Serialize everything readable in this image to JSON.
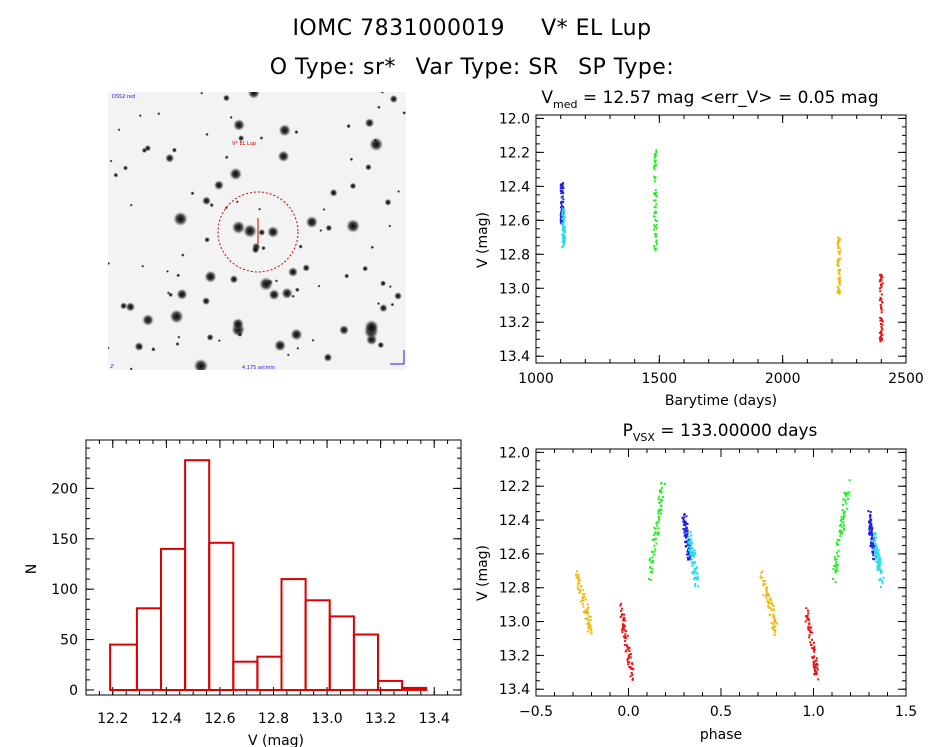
{
  "header": {
    "star_id": "IOMC 7831000019",
    "star_name": "V* EL Lup",
    "otype": "O Type: sr*",
    "vartype": "Var Type: SR",
    "sptype": "SP Type:"
  },
  "image_panel": {
    "label_top_left": "DSS2 red",
    "label_target": "V* EL Lup",
    "label_bottom_left": "2'",
    "label_bottom_center": "4.175 arcmin",
    "colors": {
      "circle": "#cc0000",
      "label": "#1a1aff"
    }
  },
  "chart_data": [
    {
      "id": "lightcurve",
      "type": "scatter",
      "title_main": "V",
      "title_sub": "med",
      "title_rest": " = 12.57 mag <err_V> = 0.05 mag",
      "xlabel": "Barytime (days)",
      "ylabel": "V (mag)",
      "xlim": [
        1000,
        2500
      ],
      "ylim": [
        13.44,
        11.98
      ],
      "y_inverted": true,
      "xticks": [
        1000,
        1500,
        2000,
        2500
      ],
      "xtick_labels": [
        "1000",
        "1500",
        "2000",
        "2500"
      ],
      "yticks": [
        12.0,
        12.2,
        12.4,
        12.6,
        12.8,
        13.0,
        13.2,
        13.4
      ],
      "ytick_labels": [
        "12.0",
        "12.2",
        "12.4",
        "12.6",
        "12.8",
        "13.0",
        "13.2",
        "13.4"
      ],
      "series": [
        {
          "name": "blue",
          "color": "#2020e0",
          "x_range": [
            1100,
            1112
          ],
          "y_range": [
            12.38,
            12.62
          ]
        },
        {
          "name": "cyan",
          "color": "#22ddee",
          "x_range": [
            1106,
            1118
          ],
          "y_range": [
            12.52,
            12.76
          ]
        },
        {
          "name": "green",
          "color": "#22ee22",
          "x_range": [
            1478,
            1490
          ],
          "y_range": [
            12.18,
            12.78
          ]
        },
        {
          "name": "yellow",
          "color": "#eebb11",
          "x_range": [
            2222,
            2234
          ],
          "y_range": [
            12.7,
            13.05
          ]
        },
        {
          "name": "red",
          "color": "#ee1111",
          "x_range": [
            2394,
            2406
          ],
          "y_range": [
            12.92,
            13.32
          ]
        }
      ]
    },
    {
      "id": "histogram",
      "type": "bar",
      "xlabel": "V (mag)",
      "ylabel": "N",
      "xlim": [
        12.1,
        13.5
      ],
      "ylim": [
        -5,
        248
      ],
      "xticks": [
        12.2,
        12.4,
        12.6,
        12.8,
        13.0,
        13.2,
        13.4
      ],
      "xtick_labels": [
        "12.2",
        "12.4",
        "12.6",
        "12.8",
        "13.0",
        "13.2",
        "13.4"
      ],
      "yticks": [
        0,
        50,
        100,
        150,
        200
      ],
      "ytick_labels": [
        "0",
        "50",
        "100",
        "150",
        "200"
      ],
      "bin_edges": [
        12.19,
        12.29,
        12.38,
        12.47,
        12.56,
        12.65,
        12.74,
        12.83,
        12.92,
        13.01,
        13.1,
        13.19,
        13.28,
        13.37
      ],
      "values": [
        45,
        81,
        140,
        228,
        146,
        28,
        33,
        110,
        89,
        73,
        55,
        9,
        2
      ],
      "color": "#dd0000"
    },
    {
      "id": "phased",
      "type": "scatter",
      "title_main": "P",
      "title_sub": "VSX",
      "title_rest": " = 133.00000 days",
      "xlabel": "phase",
      "ylabel": "V (mag)",
      "xlim": [
        -0.5,
        1.5
      ],
      "ylim": [
        13.44,
        11.98
      ],
      "y_inverted": true,
      "xticks": [
        -0.5,
        0.0,
        0.5,
        1.0,
        1.5
      ],
      "xtick_labels": [
        "−0.5",
        "0.0",
        "0.5",
        "1.0",
        "1.5"
      ],
      "yticks": [
        12.0,
        12.2,
        12.4,
        12.6,
        12.8,
        13.0,
        13.2,
        13.4
      ],
      "ytick_labels": [
        "12.0",
        "12.2",
        "12.4",
        "12.6",
        "12.8",
        "13.0",
        "13.2",
        "13.4"
      ],
      "series": [
        {
          "name": "yellow",
          "color": "#eebb11",
          "phase_start": -0.28,
          "phase_end": -0.2,
          "y_start": 12.72,
          "y_end": 13.06
        },
        {
          "name": "red",
          "color": "#ee1111",
          "phase_start": -0.04,
          "phase_end": 0.02,
          "y_start": 12.92,
          "y_end": 13.32
        },
        {
          "name": "green",
          "color": "#22ee22",
          "phase_start": 0.11,
          "phase_end": 0.19,
          "y_start": 12.75,
          "y_end": 12.18
        },
        {
          "name": "blue",
          "color": "#2020e0",
          "phase_start": 0.3,
          "phase_end": 0.33,
          "y_start": 12.38,
          "y_end": 12.62
        },
        {
          "name": "cyan",
          "color": "#22ddee",
          "phase_start": 0.33,
          "phase_end": 0.37,
          "y_start": 12.5,
          "y_end": 12.76
        }
      ]
    }
  ]
}
